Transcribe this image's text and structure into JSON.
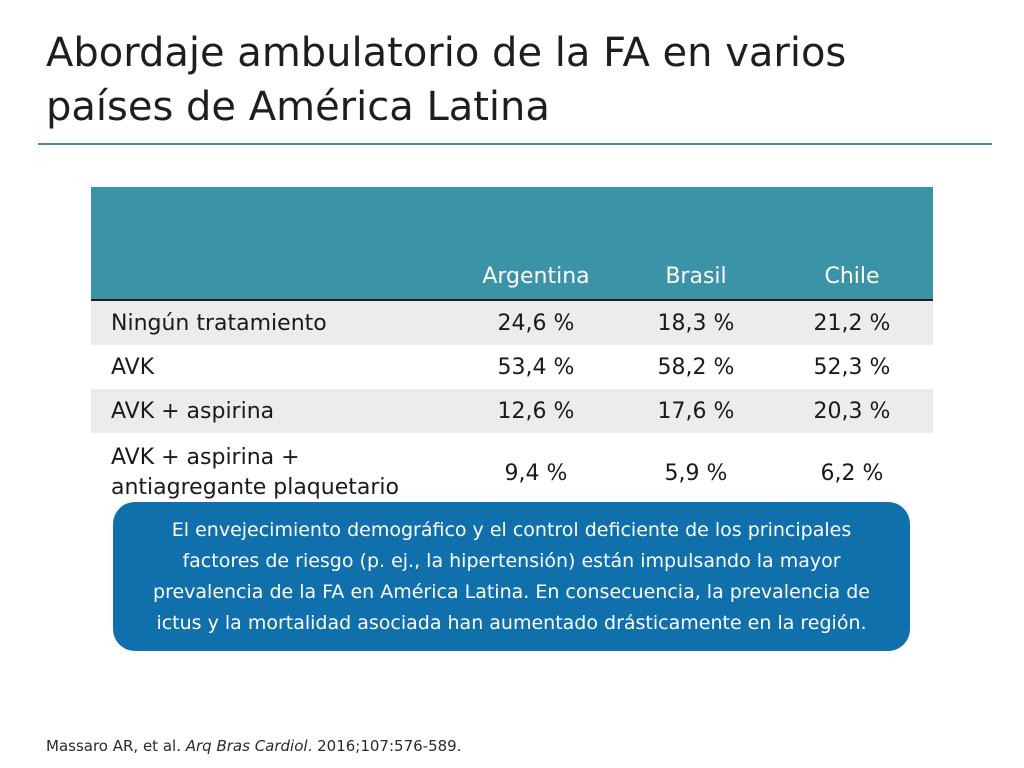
{
  "title": {
    "line1": "Abordaje ambulatorio de la FA en varios",
    "line2": "países de América Latina"
  },
  "table": {
    "columns": [
      "Argentina",
      "Brasil",
      "Chile"
    ],
    "rows": [
      {
        "label": "Ningún tratamiento",
        "values": [
          "24,6 %",
          "18,3 %",
          "21,2 %"
        ]
      },
      {
        "label": "AVK",
        "values": [
          "53,4 %",
          "58,2 %",
          "52,3 %"
        ]
      },
      {
        "label": "AVK + aspirina",
        "values": [
          "12,6 %",
          "17,6 %",
          "20,3 %"
        ]
      },
      {
        "label_line1": "AVK + aspirina +",
        "label_line2": "antiagregante plaquetario",
        "values": [
          "9,4 %",
          "5,9 %",
          "6,2 %"
        ]
      }
    ]
  },
  "callout": {
    "text": "El envejecimiento demográfico y el control deficiente de los principales factores de riesgo (p. ej., la hipertensión) están impulsando la mayor prevalencia de la FA en América Latina. En consecuencia, la prevalencia de ictus y la mortalidad asociada han aumentado drásticamente en la región."
  },
  "citation": {
    "authors": "Massaro AR, et al.",
    "journal": "Arq Bras Cardiol",
    "details": ". 2016;107:576-589."
  },
  "colors": {
    "accent_teal": "#3a93a6",
    "callout_blue": "#0f70ac",
    "row_shade": "#ececec"
  }
}
